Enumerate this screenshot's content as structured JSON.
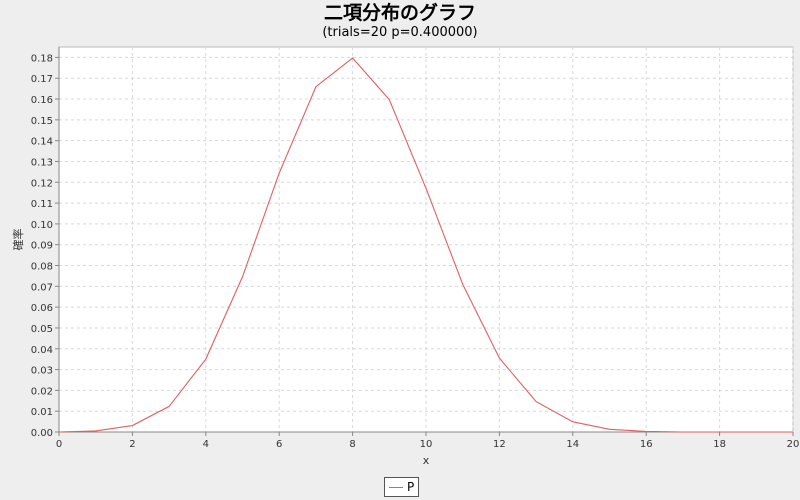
{
  "chart_data": {
    "type": "line",
    "title": "二項分布のグラフ",
    "subtitle": "(trials=20 p=0.400000)",
    "xlabel": "x",
    "ylabel": "確率",
    "xlim": [
      0,
      20
    ],
    "ylim": [
      0,
      0.185
    ],
    "xticks": [
      "0",
      "2",
      "4",
      "6",
      "8",
      "10",
      "12",
      "14",
      "16",
      "18",
      "20"
    ],
    "yticks": [
      "0.00",
      "0.01",
      "0.02",
      "0.03",
      "0.04",
      "0.05",
      "0.06",
      "0.07",
      "0.08",
      "0.09",
      "0.10",
      "0.11",
      "0.12",
      "0.13",
      "0.14",
      "0.15",
      "0.16",
      "0.17",
      "0.18"
    ],
    "grid": true,
    "legend_position": "bottom-center",
    "series": [
      {
        "name": "P",
        "color": "#e06060",
        "x": [
          0,
          1,
          2,
          3,
          4,
          5,
          6,
          7,
          8,
          9,
          10,
          11,
          12,
          13,
          14,
          15,
          16,
          17,
          18,
          19,
          20
        ],
        "values": [
          0.0,
          0.0005,
          0.0031,
          0.0123,
          0.035,
          0.0746,
          0.1244,
          0.1659,
          0.1797,
          0.1597,
          0.1171,
          0.071,
          0.0355,
          0.0146,
          0.0049,
          0.0013,
          0.0003,
          0.0,
          0.0,
          0.0,
          0.0
        ]
      }
    ]
  }
}
